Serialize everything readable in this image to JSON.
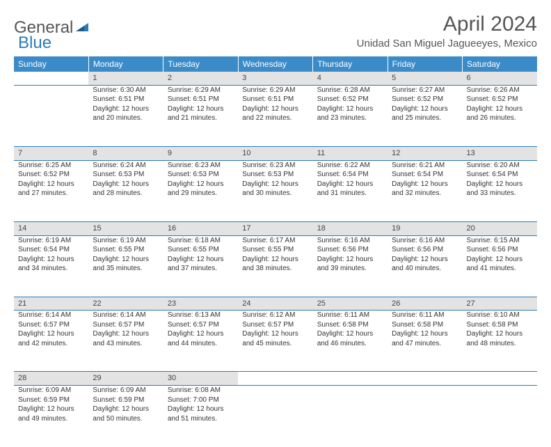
{
  "logo": {
    "general": "General",
    "blue": "Blue"
  },
  "title": "April 2024",
  "location": "Unidad San Miguel Jagueeyes, Mexico",
  "colors": {
    "header_bg": "#3b8bc9",
    "header_text": "#ffffff",
    "daynum_bg": "#e3e3e3",
    "border": "#2a7ab8",
    "logo_blue": "#2a7ab8",
    "text": "#333333"
  },
  "weekdays": [
    "Sunday",
    "Monday",
    "Tuesday",
    "Wednesday",
    "Thursday",
    "Friday",
    "Saturday"
  ],
  "weeks": [
    {
      "nums": [
        "",
        "1",
        "2",
        "3",
        "4",
        "5",
        "6"
      ],
      "cells": [
        null,
        {
          "sunrise": "Sunrise: 6:30 AM",
          "sunset": "Sunset: 6:51 PM",
          "d1": "Daylight: 12 hours",
          "d2": "and 20 minutes."
        },
        {
          "sunrise": "Sunrise: 6:29 AM",
          "sunset": "Sunset: 6:51 PM",
          "d1": "Daylight: 12 hours",
          "d2": "and 21 minutes."
        },
        {
          "sunrise": "Sunrise: 6:29 AM",
          "sunset": "Sunset: 6:51 PM",
          "d1": "Daylight: 12 hours",
          "d2": "and 22 minutes."
        },
        {
          "sunrise": "Sunrise: 6:28 AM",
          "sunset": "Sunset: 6:52 PM",
          "d1": "Daylight: 12 hours",
          "d2": "and 23 minutes."
        },
        {
          "sunrise": "Sunrise: 6:27 AM",
          "sunset": "Sunset: 6:52 PM",
          "d1": "Daylight: 12 hours",
          "d2": "and 25 minutes."
        },
        {
          "sunrise": "Sunrise: 6:26 AM",
          "sunset": "Sunset: 6:52 PM",
          "d1": "Daylight: 12 hours",
          "d2": "and 26 minutes."
        }
      ]
    },
    {
      "nums": [
        "7",
        "8",
        "9",
        "10",
        "11",
        "12",
        "13"
      ],
      "cells": [
        {
          "sunrise": "Sunrise: 6:25 AM",
          "sunset": "Sunset: 6:52 PM",
          "d1": "Daylight: 12 hours",
          "d2": "and 27 minutes."
        },
        {
          "sunrise": "Sunrise: 6:24 AM",
          "sunset": "Sunset: 6:53 PM",
          "d1": "Daylight: 12 hours",
          "d2": "and 28 minutes."
        },
        {
          "sunrise": "Sunrise: 6:23 AM",
          "sunset": "Sunset: 6:53 PM",
          "d1": "Daylight: 12 hours",
          "d2": "and 29 minutes."
        },
        {
          "sunrise": "Sunrise: 6:23 AM",
          "sunset": "Sunset: 6:53 PM",
          "d1": "Daylight: 12 hours",
          "d2": "and 30 minutes."
        },
        {
          "sunrise": "Sunrise: 6:22 AM",
          "sunset": "Sunset: 6:54 PM",
          "d1": "Daylight: 12 hours",
          "d2": "and 31 minutes."
        },
        {
          "sunrise": "Sunrise: 6:21 AM",
          "sunset": "Sunset: 6:54 PM",
          "d1": "Daylight: 12 hours",
          "d2": "and 32 minutes."
        },
        {
          "sunrise": "Sunrise: 6:20 AM",
          "sunset": "Sunset: 6:54 PM",
          "d1": "Daylight: 12 hours",
          "d2": "and 33 minutes."
        }
      ]
    },
    {
      "nums": [
        "14",
        "15",
        "16",
        "17",
        "18",
        "19",
        "20"
      ],
      "cells": [
        {
          "sunrise": "Sunrise: 6:19 AM",
          "sunset": "Sunset: 6:54 PM",
          "d1": "Daylight: 12 hours",
          "d2": "and 34 minutes."
        },
        {
          "sunrise": "Sunrise: 6:19 AM",
          "sunset": "Sunset: 6:55 PM",
          "d1": "Daylight: 12 hours",
          "d2": "and 35 minutes."
        },
        {
          "sunrise": "Sunrise: 6:18 AM",
          "sunset": "Sunset: 6:55 PM",
          "d1": "Daylight: 12 hours",
          "d2": "and 37 minutes."
        },
        {
          "sunrise": "Sunrise: 6:17 AM",
          "sunset": "Sunset: 6:55 PM",
          "d1": "Daylight: 12 hours",
          "d2": "and 38 minutes."
        },
        {
          "sunrise": "Sunrise: 6:16 AM",
          "sunset": "Sunset: 6:56 PM",
          "d1": "Daylight: 12 hours",
          "d2": "and 39 minutes."
        },
        {
          "sunrise": "Sunrise: 6:16 AM",
          "sunset": "Sunset: 6:56 PM",
          "d1": "Daylight: 12 hours",
          "d2": "and 40 minutes."
        },
        {
          "sunrise": "Sunrise: 6:15 AM",
          "sunset": "Sunset: 6:56 PM",
          "d1": "Daylight: 12 hours",
          "d2": "and 41 minutes."
        }
      ]
    },
    {
      "nums": [
        "21",
        "22",
        "23",
        "24",
        "25",
        "26",
        "27"
      ],
      "cells": [
        {
          "sunrise": "Sunrise: 6:14 AM",
          "sunset": "Sunset: 6:57 PM",
          "d1": "Daylight: 12 hours",
          "d2": "and 42 minutes."
        },
        {
          "sunrise": "Sunrise: 6:14 AM",
          "sunset": "Sunset: 6:57 PM",
          "d1": "Daylight: 12 hours",
          "d2": "and 43 minutes."
        },
        {
          "sunrise": "Sunrise: 6:13 AM",
          "sunset": "Sunset: 6:57 PM",
          "d1": "Daylight: 12 hours",
          "d2": "and 44 minutes."
        },
        {
          "sunrise": "Sunrise: 6:12 AM",
          "sunset": "Sunset: 6:57 PM",
          "d1": "Daylight: 12 hours",
          "d2": "and 45 minutes."
        },
        {
          "sunrise": "Sunrise: 6:11 AM",
          "sunset": "Sunset: 6:58 PM",
          "d1": "Daylight: 12 hours",
          "d2": "and 46 minutes."
        },
        {
          "sunrise": "Sunrise: 6:11 AM",
          "sunset": "Sunset: 6:58 PM",
          "d1": "Daylight: 12 hours",
          "d2": "and 47 minutes."
        },
        {
          "sunrise": "Sunrise: 6:10 AM",
          "sunset": "Sunset: 6:58 PM",
          "d1": "Daylight: 12 hours",
          "d2": "and 48 minutes."
        }
      ]
    },
    {
      "nums": [
        "28",
        "29",
        "30",
        "",
        "",
        "",
        ""
      ],
      "cells": [
        {
          "sunrise": "Sunrise: 6:09 AM",
          "sunset": "Sunset: 6:59 PM",
          "d1": "Daylight: 12 hours",
          "d2": "and 49 minutes."
        },
        {
          "sunrise": "Sunrise: 6:09 AM",
          "sunset": "Sunset: 6:59 PM",
          "d1": "Daylight: 12 hours",
          "d2": "and 50 minutes."
        },
        {
          "sunrise": "Sunrise: 6:08 AM",
          "sunset": "Sunset: 7:00 PM",
          "d1": "Daylight: 12 hours",
          "d2": "and 51 minutes."
        },
        null,
        null,
        null,
        null
      ]
    }
  ]
}
